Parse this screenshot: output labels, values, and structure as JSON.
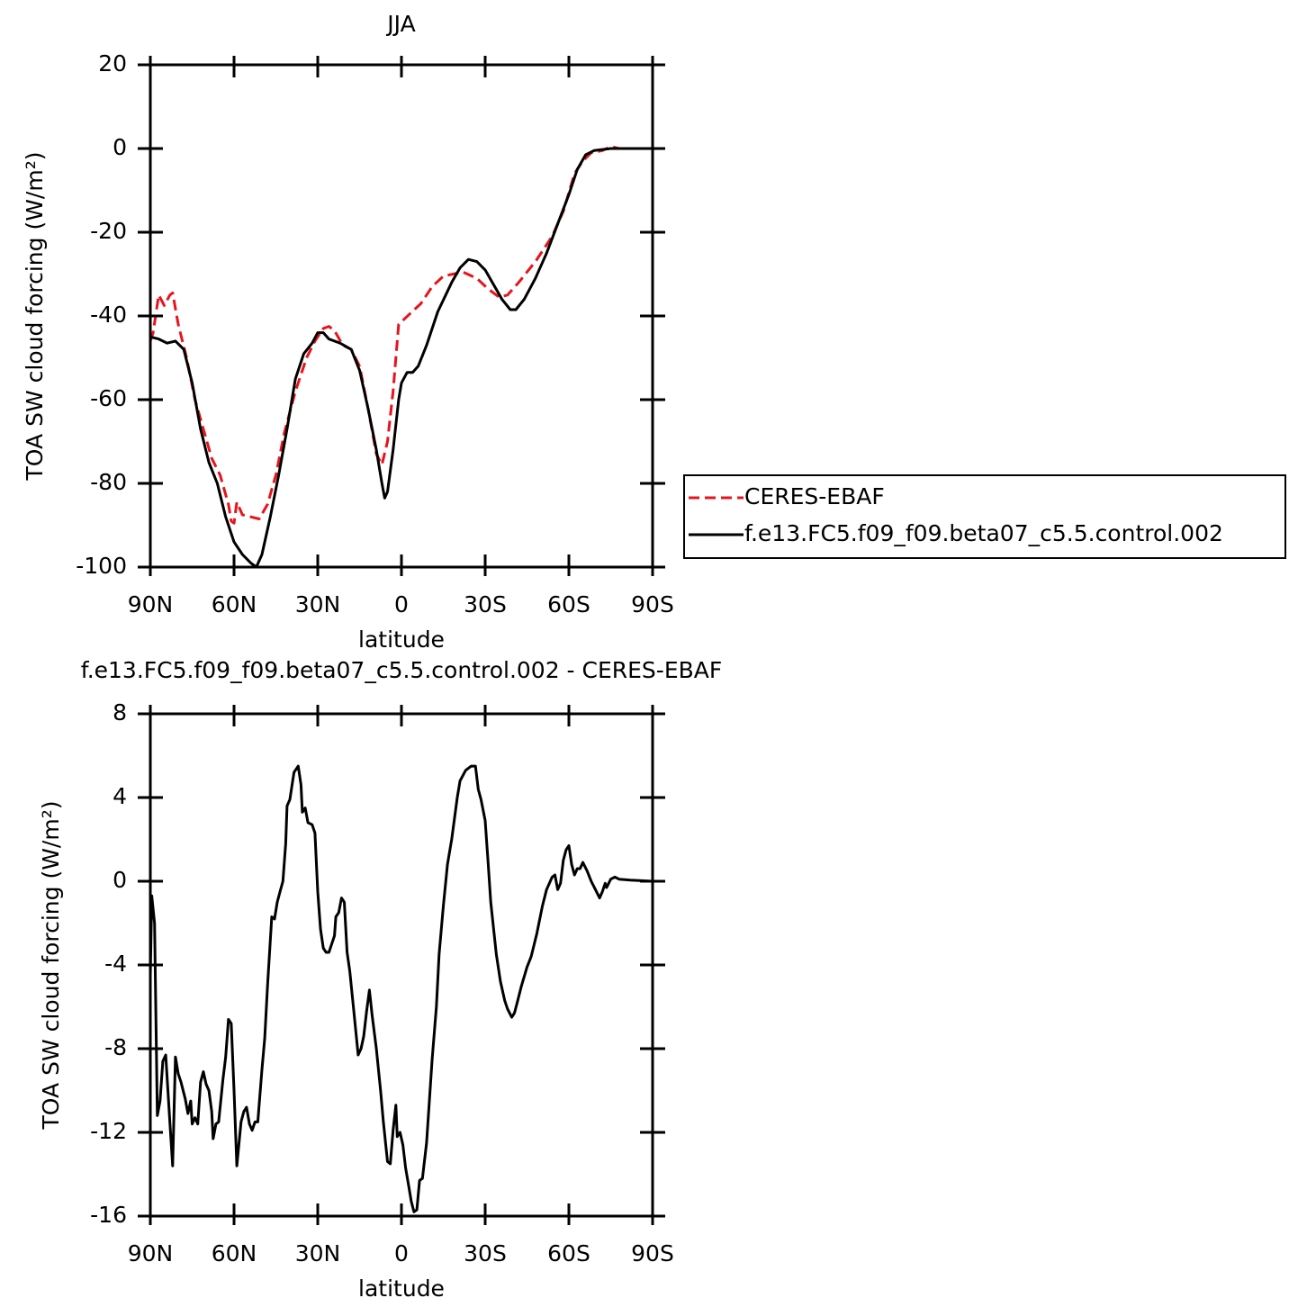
{
  "chart_data": [
    {
      "type": "line",
      "title": "JJA",
      "xlabel": "latitude",
      "ylabel": "TOA SW cloud forcing (W/m²)",
      "xlim": [
        90,
        -90
      ],
      "xticks": [
        {
          "value": 90,
          "label": "90N"
        },
        {
          "value": 60,
          "label": "60N"
        },
        {
          "value": 30,
          "label": "30N"
        },
        0,
        {
          "value": -30,
          "label": "30S"
        },
        {
          "value": -60,
          "label": "60S"
        },
        {
          "value": -90,
          "label": "90S"
        }
      ],
      "ylim": [
        -100,
        20
      ],
      "yticks": [
        -100,
        -80,
        -60,
        -40,
        -20,
        0,
        20
      ],
      "legend": "right",
      "series": [
        {
          "name": "CERES-EBAF",
          "color": "#e8141c",
          "linestyle": "dashed",
          "x": [
            90,
            89,
            87,
            85,
            83,
            82,
            80,
            77,
            74,
            71,
            68,
            65,
            62,
            61,
            60,
            59,
            57,
            54,
            51,
            48,
            45,
            42,
            38,
            34,
            31,
            28,
            26,
            24,
            21,
            18,
            15,
            12,
            9,
            7,
            5,
            3,
            1,
            -3,
            -7,
            -11,
            -15,
            -22,
            -27,
            -31,
            -35,
            -38,
            -42,
            -48,
            -54,
            -58,
            -62,
            -65,
            -68,
            -72,
            -75,
            -78,
            -90
          ],
          "values": [
            -46,
            -44,
            -35,
            -37.5,
            -35,
            -34.5,
            -42,
            -50,
            -60,
            -67,
            -74,
            -78,
            -85,
            -89,
            -89.5,
            -84.5,
            -87.5,
            -88,
            -88.5,
            -85,
            -78,
            -68,
            -58,
            -50,
            -46,
            -43,
            -42.5,
            -43.5,
            -47,
            -48,
            -52,
            -62,
            -73,
            -75.5,
            -70,
            -58,
            -42,
            -39.5,
            -37,
            -33,
            -30.5,
            -29.5,
            -31,
            -33.5,
            -35.5,
            -35,
            -32,
            -27,
            -21,
            -15,
            -6,
            -3,
            -1,
            -0.5,
            0.5,
            0,
            0
          ]
        },
        {
          "name": "f.e13.FC5.f09_f09.beta07_c5.5.control.002",
          "color": "#000000",
          "linestyle": "solid",
          "x": [
            90,
            87,
            84,
            81,
            78,
            75,
            72,
            69,
            66,
            63,
            60,
            57,
            54,
            52,
            50,
            47,
            44,
            41,
            38,
            35,
            32,
            30,
            28,
            26,
            22,
            18,
            15,
            12,
            9,
            7,
            6,
            5,
            3,
            1,
            0,
            -2,
            -4,
            -6,
            -9,
            -13,
            -18,
            -21,
            -24,
            -27,
            -30,
            -33,
            -36,
            -39,
            -41,
            -44,
            -48,
            -52,
            -56,
            -60,
            -63,
            -66,
            -69,
            -75,
            -80,
            -90
          ],
          "values": [
            -45,
            -45.5,
            -46.5,
            -46,
            -48,
            -56,
            -67,
            -75,
            -80,
            -88,
            -94,
            -97,
            -99,
            -100,
            -97,
            -88,
            -78,
            -67,
            -55,
            -49,
            -46.5,
            -44,
            -44,
            -45.5,
            -46.5,
            -48,
            -53,
            -62,
            -72,
            -80,
            -83.5,
            -82,
            -72,
            -60,
            -56,
            -53.5,
            -53.5,
            -52,
            -47,
            -39,
            -32,
            -28.5,
            -26.5,
            -27,
            -29,
            -32.5,
            -36,
            -38.5,
            -38.5,
            -36,
            -31,
            -25,
            -18,
            -11,
            -5,
            -1.5,
            -0.5,
            0,
            0,
            0
          ]
        }
      ]
    },
    {
      "type": "line",
      "title": "f.e13.FC5.f09_f09.beta07_c5.5.control.002 - CERES-EBAF",
      "xlabel": "latitude",
      "ylabel": "TOA SW cloud forcing (W/m²)",
      "xlim": [
        90,
        -90
      ],
      "xticks": [
        {
          "value": 90,
          "label": "90N"
        },
        {
          "value": 60,
          "label": "60N"
        },
        {
          "value": 30,
          "label": "30N"
        },
        0,
        {
          "value": -30,
          "label": "30S"
        },
        {
          "value": -60,
          "label": "60S"
        },
        {
          "value": -90,
          "label": "90S"
        }
      ],
      "ylim": [
        -16,
        8
      ],
      "yticks": [
        -16,
        -12,
        -8,
        -4,
        0,
        4,
        8
      ],
      "series": [
        {
          "color": "#000000",
          "linestyle": "solid",
          "x": [
            90,
            89.5,
            88.5,
            87.5,
            86.5,
            85.5,
            84.5,
            83,
            82,
            81,
            80,
            79,
            77.5,
            76.5,
            75.5,
            75,
            74,
            73,
            72,
            71,
            70,
            69,
            68,
            67.5,
            66.5,
            65.5,
            64,
            63,
            62,
            61,
            60,
            59,
            57.5,
            56.5,
            55.5,
            54.5,
            53.5,
            52.5,
            51.5,
            50,
            49,
            48,
            46.5,
            45.5,
            44.5,
            43.5,
            42.5,
            41.5,
            41,
            40,
            38.5,
            37,
            36,
            35.5,
            34.5,
            33.5,
            32,
            31,
            30,
            29,
            28,
            27,
            26,
            25,
            24,
            23.5,
            22.5,
            21.5,
            20.5,
            19.5,
            18.5,
            17,
            15.5,
            14.5,
            13.5,
            12.5,
            11.5,
            10.5,
            9,
            7.5,
            6.5,
            5,
            4,
            3,
            2,
            1.5,
            0.5,
            -0.5,
            -1.5,
            -2.5,
            -3.5,
            -4.5,
            -5.5,
            -6.5,
            -7.5,
            -9,
            -10,
            -11,
            -12.5,
            -13.5,
            -15,
            -16.5,
            -18,
            -19,
            -20,
            -21,
            -23,
            -25,
            -26.5,
            -27.5,
            -28.5,
            -30,
            -31,
            -32,
            -34,
            -35.5,
            -37,
            -38,
            -39.5,
            -40.5,
            -41.5,
            -43,
            -45,
            -46.5,
            -48.5,
            -50.5,
            -52,
            -54,
            -55,
            -56,
            -57,
            -58,
            -59,
            -60,
            -61,
            -62,
            -63,
            -64,
            -65,
            -66.5,
            -68,
            -69.5,
            -71,
            -72,
            -73,
            -73.5,
            -75,
            -76.5,
            -78,
            -82,
            -90
          ],
          "values": [
            -4.5,
            -0.7,
            -2,
            -11.2,
            -10.5,
            -8.6,
            -8.3,
            -11.5,
            -13.6,
            -8.4,
            -9.2,
            -9.6,
            -10.4,
            -11.1,
            -10.5,
            -11.6,
            -11.3,
            -11.6,
            -9.6,
            -9.1,
            -9.7,
            -10,
            -11,
            -12.3,
            -11.6,
            -11.5,
            -9.5,
            -8.4,
            -6.6,
            -6.8,
            -10,
            -13.6,
            -11.5,
            -11,
            -10.8,
            -11.6,
            -11.9,
            -11.5,
            -11.5,
            -9,
            -7.5,
            -5,
            -1.7,
            -1.8,
            -1,
            -0.5,
            0,
            1.8,
            3.6,
            3.9,
            5.2,
            5.5,
            4.6,
            3.3,
            3.5,
            2.8,
            2.7,
            2.3,
            -0.5,
            -2.3,
            -3.2,
            -3.4,
            -3.4,
            -3,
            -2.6,
            -1.7,
            -1.5,
            -0.8,
            -1,
            -3.4,
            -4.3,
            -6.3,
            -8.3,
            -8,
            -7.4,
            -6.2,
            -5.2,
            -6.4,
            -8,
            -10,
            -11.5,
            -13.4,
            -13.5,
            -11.9,
            -10.7,
            -12.2,
            -12,
            -12.6,
            -13.7,
            -14.5,
            -15.3,
            -15.8,
            -15.7,
            -14.3,
            -14.2,
            -12.5,
            -10.5,
            -8.5,
            -6,
            -3.5,
            -1.2,
            0.8,
            2,
            3,
            4,
            4.8,
            5.3,
            5.5,
            5.5,
            4.4,
            3.9,
            2.9,
            1,
            -1,
            -3.5,
            -4.8,
            -5.7,
            -6.1,
            -6.5,
            -6.3,
            -5.8,
            -5,
            -4.1,
            -3.6,
            -2.5,
            -1.2,
            -0.4,
            0.2,
            0.3,
            -0.4,
            -0.1,
            1,
            1.5,
            1.7,
            0.8,
            0.3,
            0.6,
            0.6,
            0.9,
            0.5,
            0,
            -0.4,
            -0.8,
            -0.5,
            -0.1,
            -0.3,
            0.1,
            0.2,
            0.1,
            0.05,
            0
          ]
        }
      ]
    }
  ]
}
